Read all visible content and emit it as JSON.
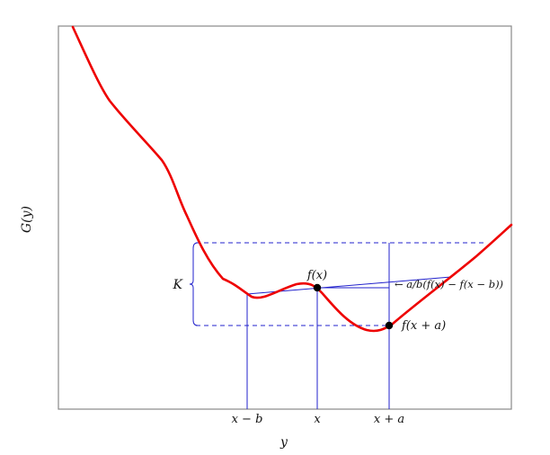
{
  "figure": {
    "ylabel": "G(y)",
    "xlabel": "y",
    "ticks": [
      "x − b",
      "x",
      "x + a"
    ],
    "labels": {
      "f_x": "f(x)",
      "f_xa": "f(x + a)",
      "K": "K",
      "slope": "← a/b(f(x) − f(x − b))"
    },
    "colors": {
      "curve": "#ee0000",
      "guides": "#2222cc",
      "frame": "#888888",
      "point": "#000000"
    }
  }
}
